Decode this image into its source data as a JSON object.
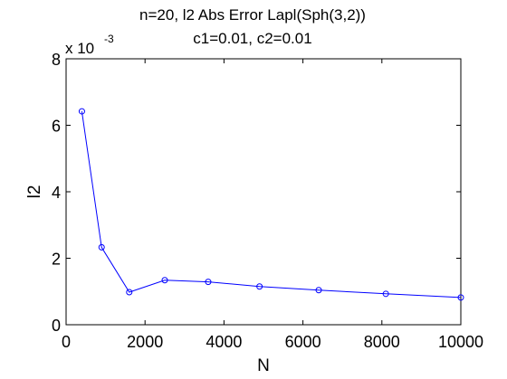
{
  "chart_data": {
    "type": "line",
    "title_line1": "n=20,  l2 Abs Error Lapl(Sph(3,2))",
    "title_line2": "c1=0.01, c2=0.01",
    "xlabel": "N",
    "ylabel": "l2",
    "y_exponent_base": "x 10",
    "y_exponent_power": "-3",
    "xlim": [
      0,
      10000
    ],
    "ylim": [
      0,
      8
    ],
    "x_ticks": [
      0,
      2000,
      4000,
      6000,
      8000,
      10000
    ],
    "y_ticks": [
      0,
      2,
      4,
      6,
      8
    ],
    "grid": false,
    "series_color": "#0000ff",
    "marker": "circle-icon",
    "x": [
      400,
      900,
      1600,
      2500,
      3600,
      4900,
      6400,
      8100,
      10000
    ],
    "y": [
      6.42,
      2.33,
      0.98,
      1.34,
      1.29,
      1.15,
      1.04,
      0.93,
      0.82
    ]
  }
}
